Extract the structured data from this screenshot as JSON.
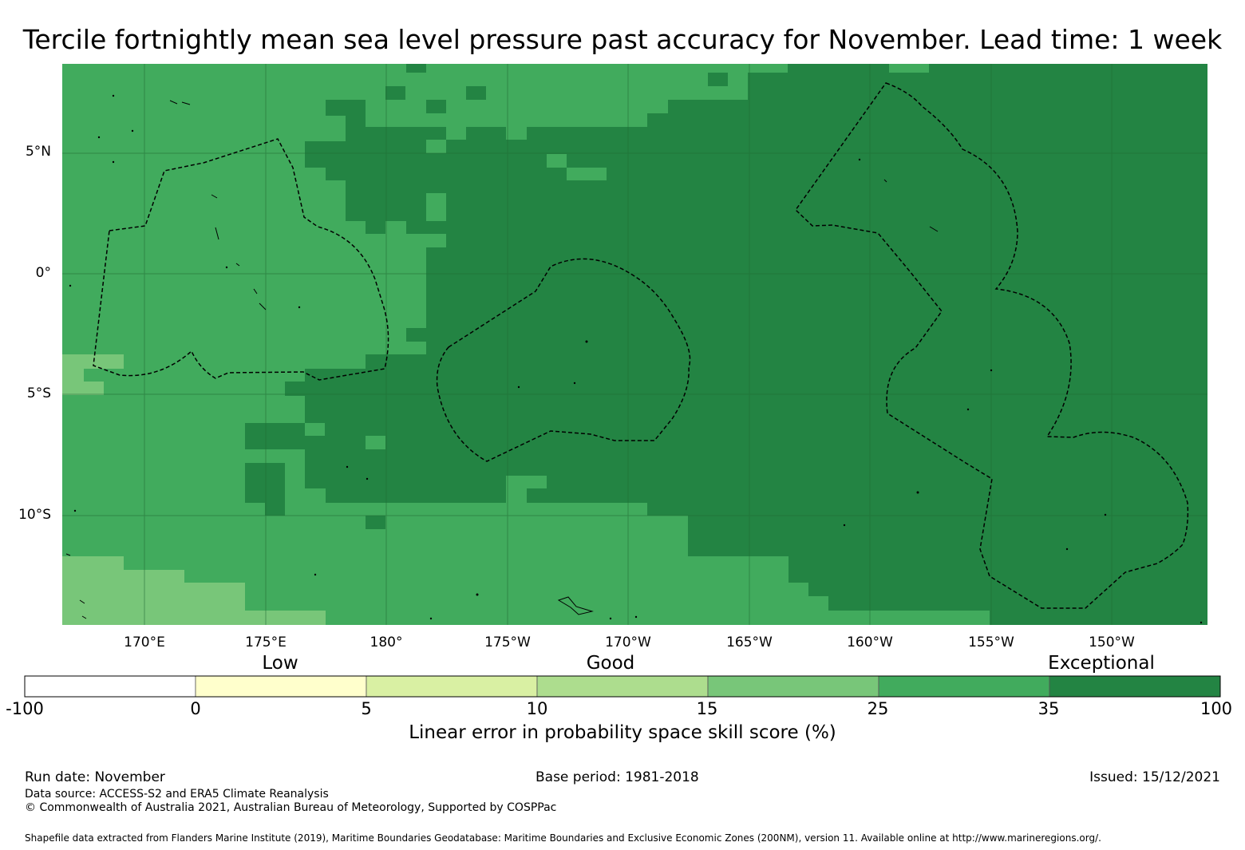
{
  "title": "Tercile fortnightly mean sea level pressure past accuracy for November. Lead time: 1 week",
  "map": {
    "latitude_labels": [
      "5°N",
      "0°",
      "5°S",
      "10°S"
    ],
    "longitude_labels": [
      "170°E",
      "175°E",
      "180°",
      "175°W",
      "170°W",
      "165°W",
      "160°W",
      "155°W",
      "150°W"
    ],
    "lon_range": [
      166.6,
      213.9
    ],
    "lat_range": [
      -14.5,
      8.7
    ],
    "latitudes": [
      5,
      0,
      -5,
      -10
    ],
    "longitudes": [
      170,
      175,
      180,
      185,
      190,
      195,
      200,
      205,
      210
    ],
    "eez_color": "#000000",
    "gridline_color": "#1f6b33"
  },
  "colorbar": {
    "categories": [
      "Low",
      "Good",
      "Exceptional"
    ],
    "ticks": [
      "-100",
      "0",
      "5",
      "10",
      "15",
      "25",
      "35",
      "100"
    ],
    "colors": [
      "#ffffff",
      "#ffffcc",
      "#d9f0a3",
      "#addd8e",
      "#78c679",
      "#41ab5d",
      "#238443"
    ],
    "label": "Linear error in probability space skill score (%)"
  },
  "footer": {
    "run_date": "Run date: November",
    "base_period": "Base period: 1981-2018",
    "issued": "Issued: 15/12/2021",
    "data_source": "Data source: ACCESS-S2 and ERA5 Climate Reanalysis",
    "copyright": "© Commonwealth of Australia 2021, Australian Bureau of Meteorology, Supported by COSPPac",
    "shapefile": "Shapefile data extracted from Flanders Marine Institute (2019), Maritime Boundaries Geodatabase: Maritime Boundaries and Exclusive Economic Zones (200NM), version 11. Available online at http://www.marineregions.org/."
  }
}
